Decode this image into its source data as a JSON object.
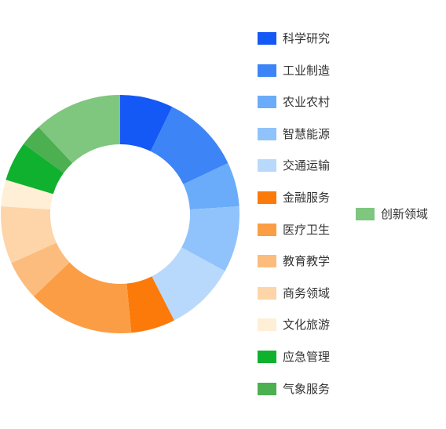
{
  "chart_data": {
    "type": "pie",
    "donut": true,
    "legend_position": "right",
    "categories": [
      "科学研究",
      "工业制造",
      "农业农村",
      "智慧能源",
      "交通运输",
      "金融服务",
      "医疗卫生",
      "教育教学",
      "商务领域",
      "文化旅游",
      "应急管理",
      "气象服务",
      "创新领域"
    ],
    "values": [
      6,
      9,
      5,
      7.5,
      8,
      5,
      12,
      4.5,
      6.5,
      3,
      4.5,
      2.5,
      10
    ],
    "colors": [
      "#1458f5",
      "#3d85f7",
      "#6aacfa",
      "#90c3fb",
      "#b9d9fc",
      "#fb7a0a",
      "#fb9d44",
      "#fcbc7d",
      "#fdd5a9",
      "#feefd6",
      "#0fb12e",
      "#4caf50",
      "#7fc67f"
    ]
  }
}
